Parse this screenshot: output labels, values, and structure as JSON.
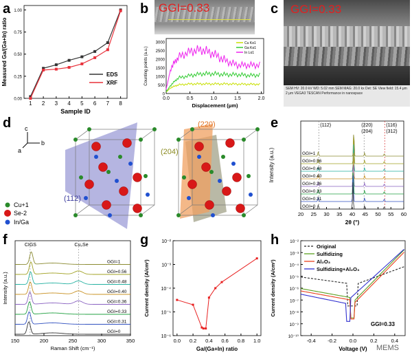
{
  "panel_labels": {
    "a": "a",
    "b": "b",
    "c": "c",
    "d": "d",
    "e": "e",
    "f": "f",
    "g": "g",
    "h": "h"
  },
  "chart_data": [
    {
      "id": "a",
      "type": "line",
      "xlabel": "Sample ID",
      "ylabel": "Measured Ga/(Ga+In) ratio",
      "xlim": [
        0.5,
        8.5
      ],
      "ylim": [
        0.0,
        1.05
      ],
      "xticks": [
        "1",
        "2",
        "3",
        "4",
        "5",
        "6",
        "7",
        "8"
      ],
      "yticks": [
        "0.00",
        "0.25",
        "0.50",
        "0.75",
        "1.00"
      ],
      "legend_position": "right",
      "series": [
        {
          "name": "EDS",
          "color": "#333333",
          "x": [
            1,
            2,
            3,
            4,
            5,
            6,
            7,
            8
          ],
          "y": [
            0.02,
            0.34,
            0.38,
            0.43,
            0.47,
            0.53,
            0.63,
            1.0
          ]
        },
        {
          "name": "XRF",
          "color": "#e8303a",
          "x": [
            1,
            2,
            3,
            4,
            5,
            6,
            7,
            8
          ],
          "y": [
            0.0,
            0.32,
            0.33,
            0.35,
            0.39,
            0.46,
            0.55,
            0.99
          ]
        }
      ]
    },
    {
      "id": "b",
      "type": "line",
      "xlabel": "Displacement (μm)",
      "ylabel": "Counting points (a.u.)",
      "xlim": [
        0.0,
        2.05
      ],
      "ylim": [
        0,
        3200
      ],
      "xticks": [
        "0.0",
        "0.5",
        "1.0",
        "1.5",
        "2.0"
      ],
      "yticks": [
        "0",
        "500",
        "1000",
        "1500",
        "2000",
        "2500",
        "3000"
      ],
      "legend_position": "top-right",
      "series": [
        {
          "name": "Cu Kα1",
          "color": "#c8e000",
          "x": [
            0,
            0.1,
            0.25,
            0.5,
            0.75,
            1.0,
            1.25,
            1.5,
            1.75,
            2.0
          ],
          "y": [
            80,
            350,
            500,
            560,
            560,
            560,
            560,
            550,
            540,
            540
          ]
        },
        {
          "name": "Ga Kα1",
          "color": "#33cc33",
          "x": [
            0,
            0.1,
            0.25,
            0.5,
            0.75,
            1.0,
            1.25,
            1.5,
            1.75,
            2.0
          ],
          "y": [
            100,
            500,
            900,
            1050,
            1150,
            1150,
            1100,
            1100,
            1050,
            1080
          ]
        },
        {
          "name": "In Lα1",
          "color": "#ee22ee",
          "x": [
            0,
            0.1,
            0.25,
            0.5,
            0.75,
            1.0,
            1.25,
            1.5,
            1.75,
            2.0
          ],
          "y": [
            250,
            1500,
            2100,
            2450,
            2550,
            2300,
            1900,
            1650,
            1650,
            1650
          ]
        }
      ]
    },
    {
      "id": "e",
      "type": "line",
      "xlabel": "2θ (°)",
      "ylabel": "Intensity (a.u.)",
      "xlim": [
        20,
        60
      ],
      "xticks": [
        "20",
        "25",
        "30",
        "35",
        "40",
        "45",
        "50",
        "55",
        "60"
      ],
      "peak_labels": [
        "(112)",
        "(220)",
        "(204)",
        "(116)",
        "(312)"
      ],
      "peak_positions": [
        27.0,
        44.6,
        44.6,
        52.6,
        52.6
      ],
      "series": [
        {
          "name": "GGI=1",
          "color": "#8a8a30"
        },
        {
          "name": "GGI=0.56",
          "color": "#a0a020"
        },
        {
          "name": "GGI=0.48",
          "color": "#22b0a0"
        },
        {
          "name": "GGI=0.40",
          "color": "#c89020"
        },
        {
          "name": "GGI=0.36",
          "color": "#8860c0"
        },
        {
          "name": "GGI=0.33",
          "color": "#20a040"
        },
        {
          "name": "GGI=0.31",
          "color": "#3050c0"
        },
        {
          "name": "GGI=0",
          "color": "#333333"
        }
      ]
    },
    {
      "id": "f",
      "type": "line",
      "xlabel": "Raman Shift (cm⁻¹)",
      "ylabel": "Intensity (a.u.)",
      "xlim": [
        150,
        350
      ],
      "xticks": [
        "150",
        "200",
        "250",
        "300",
        "350"
      ],
      "peak_labels": [
        "CIGS",
        "Cu₂Se"
      ],
      "peak_positions": [
        176,
        260
      ],
      "series": [
        {
          "name": "GGI=1",
          "color": "#8a8a30"
        },
        {
          "name": "GGI=0.56",
          "color": "#a0a020"
        },
        {
          "name": "GGI=0.48",
          "color": "#22b0a0"
        },
        {
          "name": "GGI=0.40",
          "color": "#c89020"
        },
        {
          "name": "GGI=0.36",
          "color": "#8860c0"
        },
        {
          "name": "GGI=0.33",
          "color": "#20a040"
        },
        {
          "name": "GGI=0.31",
          "color": "#3050c0"
        },
        {
          "name": "GGI=0",
          "color": "#333333"
        }
      ]
    },
    {
      "id": "g",
      "type": "line",
      "xlabel": "Ga/(Ga+In) ratio",
      "ylabel": "Current density (A/cm²)",
      "xlim": [
        -0.05,
        1.05
      ],
      "xticks": [
        "0.0",
        "0.2",
        "0.4",
        "0.6",
        "0.8",
        "1.0"
      ],
      "ylim_log": [
        -6,
        -2
      ],
      "yticks": [
        "10⁻⁶",
        "10⁻⁵",
        "10⁻⁴",
        "10⁻³",
        "10⁻²"
      ],
      "series": [
        {
          "name": "",
          "color": "#e82020",
          "x": [
            0.0,
            0.2,
            0.31,
            0.33,
            0.36,
            0.4,
            0.48,
            0.56,
            1.0
          ],
          "y": [
            3.2e-05,
            2e-05,
            2.2e-06,
            2e-06,
            2e-06,
            4e-05,
            0.0001,
            0.00018,
            0.0018
          ]
        }
      ]
    },
    {
      "id": "h",
      "type": "line",
      "xlabel": "Voltage (V)",
      "ylabel": "Current density (A/cm²)",
      "xlim": [
        -0.5,
        0.5
      ],
      "xticks": [
        "-0.4",
        "-0.2",
        "0.0",
        "0.2",
        "0.4"
      ],
      "ylim_log": [
        -10,
        -2
      ],
      "yticks": [
        "10⁻²",
        "10⁻³",
        "10⁻⁴",
        "10⁻⁵",
        "10⁻⁶",
        "10⁻⁷",
        "10⁻⁸",
        "10⁻⁹",
        "10⁻¹⁰"
      ],
      "annotation": "GGI=0.33",
      "legend_position": "top-left",
      "series": [
        {
          "name": "Original",
          "color": "#222222",
          "dash": true
        },
        {
          "name": "Sulfidizing",
          "color": "#5aa020"
        },
        {
          "name": "Al₂O₃",
          "color": "#e8401c"
        },
        {
          "name": "Sulfidizing+Al₂O₃",
          "color": "#3030d0"
        }
      ]
    }
  ],
  "sem_b": {
    "label": "GGI=0.33"
  },
  "sem_c": {
    "label": "GGI=0.33",
    "footer": "SEM HV: 20.0 kV    WD: 5.02 mm    SEM MAG: 20.0 kx   Det: SE   View field: 15.4 μm   2 μm    VEGA3 TESCAN   Performance in nanospace"
  },
  "structure": {
    "axis_c": "c",
    "axis_a": "a",
    "axis_b": "b",
    "plane1": "(112)",
    "plane2": "(220)",
    "plane3": "(204)",
    "legend": [
      {
        "label": "Cu+1",
        "color": "#2a8a2a"
      },
      {
        "label": "Se-2",
        "color": "#d81818"
      },
      {
        "label": "In/Ga",
        "color": "#2050d0"
      }
    ]
  },
  "watermark": "MEMS"
}
